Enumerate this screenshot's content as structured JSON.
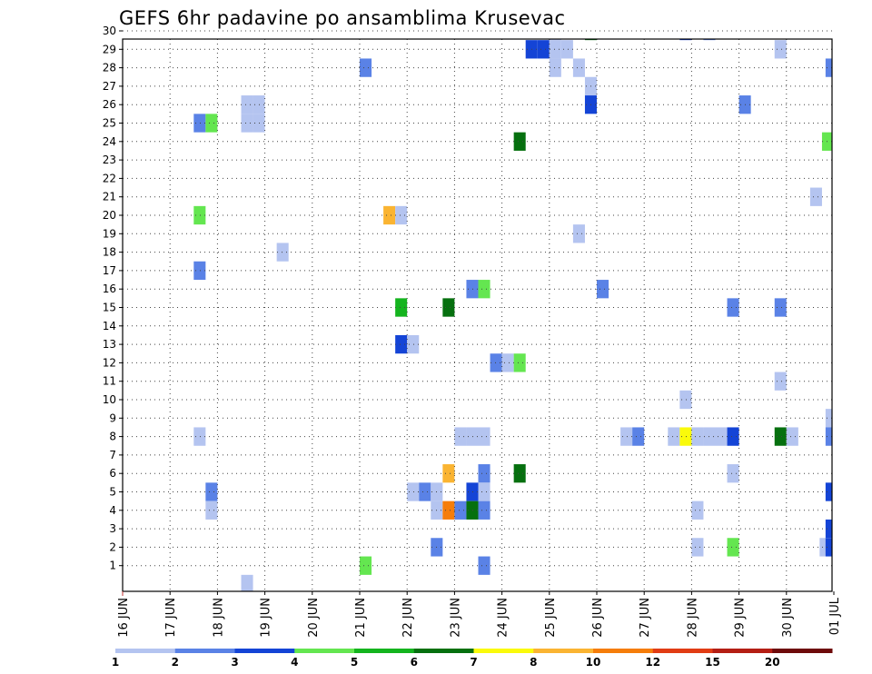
{
  "chart_data": {
    "type": "heatmap",
    "title": "GEFS 6hr padavine po ansamblima Krusevac",
    "y_categories": [
      "1",
      "2",
      "3",
      "4",
      "5",
      "6",
      "7",
      "8",
      "9",
      "10",
      "11",
      "12",
      "13",
      "14",
      "15",
      "16",
      "17",
      "18",
      "19",
      "20",
      "21",
      "22",
      "23",
      "24",
      "25",
      "26",
      "27",
      "28",
      "29",
      "30"
    ],
    "x_tick_labels": [
      "16 JUN",
      "17 JUN",
      "18 JUN",
      "19 JUN",
      "20 JUN",
      "21 JUN",
      "22 JUN",
      "23 JUN",
      "24 JUN",
      "25 JUN",
      "26 JUN",
      "27 JUN",
      "28 JUN",
      "29 JUN",
      "30 JUN",
      "01 JUL"
    ],
    "x_range_steps": [
      0,
      60
    ],
    "steps_per_day": 4,
    "colorbar": {
      "tick_labels": [
        "1",
        "2",
        "3",
        "4",
        "5",
        "6",
        "7",
        "8",
        "10",
        "12",
        "15",
        "20"
      ],
      "colors": [
        "#b4c4f0",
        "#5a82e6",
        "#1444d6",
        "#64e650",
        "#14b41e",
        "#06700f",
        "#fafa0a",
        "#fab432",
        "#f57d0a",
        "#e13c14",
        "#b41e14",
        "#6e0a0a"
      ]
    },
    "grid": "dotted",
    "cells": [
      {
        "member": 30,
        "step": 36.5,
        "level": 1
      },
      {
        "member": 30,
        "step": 39.5,
        "level": 6
      },
      {
        "member": 30,
        "step": 47.5,
        "level": 3
      },
      {
        "member": 30,
        "step": 49.5,
        "level": 2
      },
      {
        "member": 29,
        "step": 34.5,
        "level": 3
      },
      {
        "member": 29,
        "step": 35.5,
        "level": 3
      },
      {
        "member": 29,
        "step": 36.5,
        "level": 1
      },
      {
        "member": 29,
        "step": 37.5,
        "level": 1
      },
      {
        "member": 29,
        "step": 55.5,
        "level": 1
      },
      {
        "member": 28,
        "step": 20.5,
        "level": 2
      },
      {
        "member": 28,
        "step": 36.5,
        "level": 1
      },
      {
        "member": 28,
        "step": 38.5,
        "level": 1
      },
      {
        "member": 28,
        "step": 59.8,
        "level": 2
      },
      {
        "member": 27,
        "step": 39.5,
        "level": 1
      },
      {
        "member": 26,
        "step": 10.5,
        "level": 1
      },
      {
        "member": 26,
        "step": 11.5,
        "level": 1
      },
      {
        "member": 26,
        "step": 39.5,
        "level": 3
      },
      {
        "member": 26,
        "step": 52.5,
        "level": 2
      },
      {
        "member": 25,
        "step": 6.5,
        "level": 2
      },
      {
        "member": 25,
        "step": 7.5,
        "level": 4
      },
      {
        "member": 25,
        "step": 10.5,
        "level": 1
      },
      {
        "member": 25,
        "step": 11.5,
        "level": 1
      },
      {
        "member": 24,
        "step": 33.5,
        "level": 6
      },
      {
        "member": 24,
        "step": 59.5,
        "level": 4
      },
      {
        "member": 21,
        "step": 58.5,
        "level": 1
      },
      {
        "member": 20,
        "step": 6.5,
        "level": 4
      },
      {
        "member": 20,
        "step": 22.5,
        "level": 8
      },
      {
        "member": 20,
        "step": 23.5,
        "level": 1
      },
      {
        "member": 19,
        "step": 38.5,
        "level": 1
      },
      {
        "member": 18,
        "step": 13.5,
        "level": 1
      },
      {
        "member": 17,
        "step": 6.5,
        "level": 2
      },
      {
        "member": 16,
        "step": 29.5,
        "level": 2
      },
      {
        "member": 16,
        "step": 30.5,
        "level": 4
      },
      {
        "member": 16,
        "step": 40.5,
        "level": 2
      },
      {
        "member": 15,
        "step": 23.5,
        "level": 5
      },
      {
        "member": 15,
        "step": 27.5,
        "level": 6
      },
      {
        "member": 15,
        "step": 51.5,
        "level": 2
      },
      {
        "member": 15,
        "step": 55.5,
        "level": 2
      },
      {
        "member": 13,
        "step": 23.5,
        "level": 3
      },
      {
        "member": 13,
        "step": 24.5,
        "level": 1
      },
      {
        "member": 12,
        "step": 31.5,
        "level": 2
      },
      {
        "member": 12,
        "step": 32.5,
        "level": 1
      },
      {
        "member": 12,
        "step": 33.5,
        "level": 4
      },
      {
        "member": 11,
        "step": 55.5,
        "level": 1
      },
      {
        "member": 10,
        "step": 47.5,
        "level": 1
      },
      {
        "member": 9,
        "step": 59.8,
        "level": 1
      },
      {
        "member": 8,
        "step": 6.5,
        "level": 1
      },
      {
        "member": 8,
        "step": 28.5,
        "level": 1
      },
      {
        "member": 8,
        "step": 29.5,
        "level": 1
      },
      {
        "member": 8,
        "step": 30.5,
        "level": 1
      },
      {
        "member": 8,
        "step": 42.5,
        "level": 1
      },
      {
        "member": 8,
        "step": 43.5,
        "level": 2
      },
      {
        "member": 8,
        "step": 46.5,
        "level": 1
      },
      {
        "member": 8,
        "step": 47.5,
        "level": 7
      },
      {
        "member": 8,
        "step": 48.5,
        "level": 1
      },
      {
        "member": 8,
        "step": 49.5,
        "level": 1
      },
      {
        "member": 8,
        "step": 50.5,
        "level": 1
      },
      {
        "member": 8,
        "step": 51.5,
        "level": 3
      },
      {
        "member": 8,
        "step": 55.5,
        "level": 6
      },
      {
        "member": 8,
        "step": 56.5,
        "level": 1
      },
      {
        "member": 8,
        "step": 59.8,
        "level": 2
      },
      {
        "member": 6,
        "step": 27.5,
        "level": 8
      },
      {
        "member": 6,
        "step": 30.5,
        "level": 2
      },
      {
        "member": 6,
        "step": 33.5,
        "level": 6
      },
      {
        "member": 6,
        "step": 51.5,
        "level": 1
      },
      {
        "member": 5,
        "step": 7.5,
        "level": 2
      },
      {
        "member": 5,
        "step": 24.5,
        "level": 1
      },
      {
        "member": 5,
        "step": 25.5,
        "level": 2
      },
      {
        "member": 5,
        "step": 26.5,
        "level": 1
      },
      {
        "member": 5,
        "step": 29.5,
        "level": 3
      },
      {
        "member": 5,
        "step": 30.5,
        "level": 1
      },
      {
        "member": 5,
        "step": 59.8,
        "level": 3
      },
      {
        "member": 4,
        "step": 7.5,
        "level": 1
      },
      {
        "member": 4,
        "step": 26.5,
        "level": 1
      },
      {
        "member": 4,
        "step": 27.5,
        "level": 9
      },
      {
        "member": 4,
        "step": 28.5,
        "level": 2
      },
      {
        "member": 4,
        "step": 29.5,
        "level": 6
      },
      {
        "member": 4,
        "step": 30.5,
        "level": 2
      },
      {
        "member": 4,
        "step": 48.5,
        "level": 1
      },
      {
        "member": 3,
        "step": 59.8,
        "level": 3
      },
      {
        "member": 2,
        "step": 26.5,
        "level": 2
      },
      {
        "member": 2,
        "step": 48.5,
        "level": 1
      },
      {
        "member": 2,
        "step": 51.5,
        "level": 4
      },
      {
        "member": 2,
        "step": 59.3,
        "level": 1
      },
      {
        "member": 2,
        "step": 59.8,
        "level": 3
      },
      {
        "member": 1,
        "step": 20.5,
        "level": 4
      },
      {
        "member": 1,
        "step": 30.5,
        "level": 2
      },
      {
        "member": 0,
        "step": 10.5,
        "level": 1
      }
    ]
  }
}
